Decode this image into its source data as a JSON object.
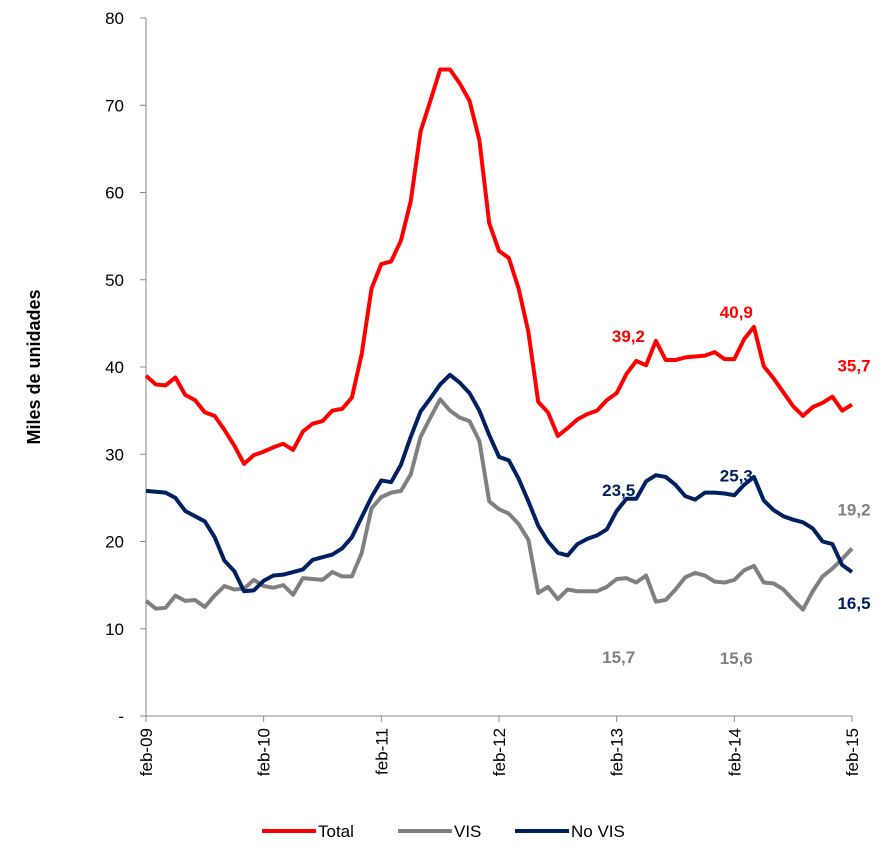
{
  "chart_data": {
    "type": "line",
    "ylabel": "Miles de unidades",
    "categories": [
      "feb-09",
      null,
      null,
      null,
      null,
      null,
      null,
      null,
      null,
      null,
      null,
      null,
      "feb-10",
      null,
      null,
      null,
      null,
      null,
      null,
      null,
      null,
      null,
      null,
      null,
      "feb-11",
      null,
      null,
      null,
      null,
      null,
      null,
      null,
      null,
      null,
      null,
      null,
      "feb-12",
      null,
      null,
      null,
      null,
      null,
      null,
      null,
      null,
      null,
      null,
      null,
      "feb-13",
      null,
      null,
      null,
      null,
      null,
      null,
      null,
      null,
      null,
      null,
      null,
      "feb-14",
      null,
      null,
      null,
      null,
      null,
      null,
      null,
      null,
      null,
      null,
      null,
      "feb-15"
    ],
    "ylim": [
      0,
      80
    ],
    "yticks": [
      {
        "value": 0,
        "label": "-"
      },
      10,
      20,
      30,
      40,
      50,
      60,
      70,
      80
    ],
    "legend": "bottom",
    "series": [
      {
        "name": "Total",
        "color": "#ff0000",
        "values": [
          39.0,
          38.0,
          37.9,
          38.8,
          36.8,
          36.2,
          34.8,
          34.4,
          32.8,
          31.0,
          28.9,
          29.9,
          30.3,
          30.8,
          31.2,
          30.5,
          32.6,
          33.5,
          33.8,
          35.0,
          35.2,
          36.5,
          41.5,
          49.0,
          51.8,
          52.1,
          54.5,
          59.0,
          67.0,
          70.5,
          74.1,
          74.1,
          72.5,
          70.5,
          66.0,
          56.5,
          53.3,
          52.5,
          49.0,
          44.0,
          36.0,
          34.8,
          32.1,
          33.0,
          34.0,
          34.6,
          35.0,
          36.2,
          37.0,
          39.2,
          40.7,
          40.2,
          43.0,
          40.8,
          40.8,
          41.1,
          41.2,
          41.3,
          41.7,
          40.9,
          40.9,
          43.2,
          44.6,
          40.1,
          38.7,
          37.1,
          35.5,
          34.4,
          35.4,
          35.9,
          36.6,
          35.0,
          35.7
        ],
        "value_labels": [
          null,
          null,
          null,
          null,
          null,
          null,
          null,
          null,
          null,
          null,
          null,
          null,
          null,
          null,
          null,
          null,
          null,
          null,
          null,
          null,
          null,
          null,
          null,
          null,
          null,
          null,
          null,
          null,
          null,
          null,
          null,
          null,
          null,
          null,
          null,
          null,
          null,
          null,
          null,
          null,
          null,
          null,
          null,
          null,
          null,
          null,
          null,
          null,
          null,
          "39,2",
          null,
          null,
          null,
          null,
          null,
          null,
          null,
          null,
          null,
          null,
          "40,9",
          null,
          null,
          null,
          null,
          null,
          null,
          null,
          null,
          null,
          null,
          null,
          "35,7"
        ]
      },
      {
        "name": "VIS",
        "color": "#808080",
        "values": [
          13.2,
          12.3,
          12.4,
          13.8,
          13.2,
          13.3,
          12.5,
          13.8,
          14.9,
          14.5,
          14.6,
          15.6,
          14.9,
          14.7,
          15.0,
          13.9,
          15.8,
          15.7,
          15.6,
          16.5,
          16.0,
          16.0,
          18.7,
          23.8,
          25.1,
          25.6,
          25.8,
          27.7,
          32.0,
          34.2,
          36.3,
          35.0,
          34.2,
          33.8,
          31.5,
          24.6,
          23.7,
          23.2,
          22.0,
          20.2,
          14.1,
          14.8,
          13.4,
          14.5,
          14.3,
          14.3,
          14.3,
          14.8,
          15.7,
          15.8,
          15.3,
          16.1,
          13.1,
          13.3,
          14.5,
          15.9,
          16.4,
          16.1,
          15.4,
          15.3,
          15.6,
          16.7,
          17.2,
          15.3,
          15.2,
          14.5,
          13.3,
          12.2,
          14.3,
          16.0,
          16.9,
          18.0,
          19.2
        ],
        "value_labels": [
          null,
          null,
          null,
          null,
          null,
          null,
          null,
          null,
          null,
          null,
          null,
          null,
          null,
          null,
          null,
          null,
          null,
          null,
          null,
          null,
          null,
          null,
          null,
          null,
          null,
          null,
          null,
          null,
          null,
          null,
          null,
          null,
          null,
          null,
          null,
          null,
          null,
          null,
          null,
          null,
          null,
          null,
          null,
          null,
          null,
          null,
          null,
          null,
          "15,7",
          null,
          null,
          null,
          null,
          null,
          null,
          null,
          null,
          null,
          null,
          null,
          "15,6",
          null,
          null,
          null,
          null,
          null,
          null,
          null,
          null,
          null,
          null,
          null,
          "19,2"
        ]
      },
      {
        "name": "No VIS",
        "color": "#002060",
        "values": [
          25.8,
          25.7,
          25.6,
          25.0,
          23.5,
          22.9,
          22.3,
          20.5,
          17.8,
          16.6,
          14.3,
          14.4,
          15.5,
          16.1,
          16.2,
          16.5,
          16.8,
          17.9,
          18.2,
          18.5,
          19.2,
          20.5,
          22.8,
          25.1,
          27.0,
          26.8,
          28.8,
          32.0,
          34.9,
          36.4,
          38.0,
          39.1,
          38.2,
          37.0,
          35.0,
          32.2,
          29.7,
          29.3,
          27.2,
          24.6,
          21.8,
          20.0,
          18.7,
          18.4,
          19.7,
          20.3,
          20.7,
          21.4,
          23.5,
          24.9,
          24.9,
          26.9,
          27.6,
          27.4,
          26.5,
          25.2,
          24.8,
          25.6,
          25.6,
          25.5,
          25.3,
          26.5,
          27.4,
          24.7,
          23.6,
          22.9,
          22.5,
          22.2,
          21.5,
          20.0,
          19.7,
          17.3,
          16.5
        ],
        "value_labels": [
          null,
          null,
          null,
          null,
          null,
          null,
          null,
          null,
          null,
          null,
          null,
          null,
          null,
          null,
          null,
          null,
          null,
          null,
          null,
          null,
          null,
          null,
          null,
          null,
          null,
          null,
          null,
          null,
          null,
          null,
          null,
          null,
          null,
          null,
          null,
          null,
          null,
          null,
          null,
          null,
          null,
          null,
          null,
          null,
          null,
          null,
          null,
          null,
          "23,5",
          null,
          null,
          null,
          null,
          null,
          null,
          null,
          null,
          null,
          null,
          null,
          "25,3",
          null,
          null,
          null,
          null,
          null,
          null,
          null,
          null,
          null,
          null,
          null,
          "16,5"
        ]
      }
    ]
  }
}
